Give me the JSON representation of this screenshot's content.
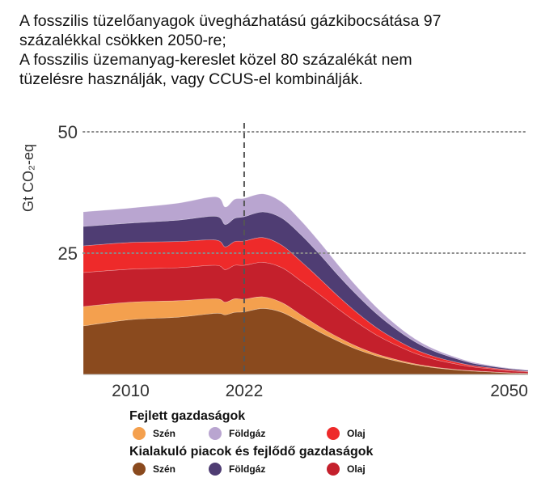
{
  "title_lines": [
    "A fosszilis tüzelőanyagok üvegházhatású gázkibocsátása 97",
    "százalékkal csökken 2050-re;",
    "A fosszilis üzemanyag-kereslet közel 80 százalékát nem",
    "tüzelésre használják, vagy CCUS-el kombinálják."
  ],
  "legend": {
    "group1_title": "Fejlett gazdaságok",
    "group2_title": "Kialakuló piacok és fejlődő gazdaságok",
    "group1": [
      {
        "label": "Szén",
        "color": "#f4a04e"
      },
      {
        "label": "Földgáz",
        "color": "#b9a5d0"
      },
      {
        "label": "Olaj",
        "color": "#ee2a2a"
      }
    ],
    "group2": [
      {
        "label": "Szén",
        "color": "#8a4a1e"
      },
      {
        "label": "Földgáz",
        "color": "#4f3d73"
      },
      {
        "label": "Olaj",
        "color": "#c4202c"
      }
    ]
  },
  "chart_data": {
    "type": "area",
    "stacked": true,
    "ylabel": "Gt CO₂-eq",
    "yticks": [
      25,
      50
    ],
    "ylim": [
      0,
      50
    ],
    "xlim": [
      2005,
      2052
    ],
    "xticks": [
      2010,
      2022,
      2050
    ],
    "reference_line_year": 2022,
    "grid": "dotted horizontal at 25 and 50",
    "x": [
      2005,
      2010,
      2015,
      2019,
      2020,
      2021,
      2022,
      2024,
      2026,
      2028,
      2030,
      2032,
      2034,
      2036,
      2038,
      2040,
      2042,
      2044,
      2046,
      2048,
      2050,
      2052
    ],
    "series": [
      {
        "name": "Szén (Kialakuló piacok és fejlődő gazdaságok)",
        "color": "#8a4a1e",
        "values": [
          10.0,
          11.3,
          11.8,
          12.6,
          12.3,
          12.8,
          12.9,
          13.6,
          12.8,
          10.8,
          8.7,
          6.8,
          5.1,
          3.8,
          2.8,
          2.0,
          1.4,
          1.0,
          0.7,
          0.5,
          0.3,
          0.2
        ]
      },
      {
        "name": "Szén (Fejlett gazdaságok)",
        "color": "#f4a04e",
        "values": [
          4.0,
          3.6,
          3.4,
          3.0,
          2.6,
          2.8,
          2.6,
          2.4,
          2.0,
          1.5,
          1.1,
          0.8,
          0.6,
          0.4,
          0.3,
          0.2,
          0.15,
          0.1,
          0.08,
          0.06,
          0.05,
          0.04
        ]
      },
      {
        "name": "Olaj (Kialakuló piacok és fejlődő gazdaságok)",
        "color": "#c4202c",
        "values": [
          7.0,
          6.8,
          6.8,
          6.9,
          6.7,
          6.9,
          7.0,
          7.1,
          7.2,
          7.0,
          6.6,
          5.8,
          4.9,
          3.9,
          3.0,
          2.2,
          1.6,
          1.2,
          0.8,
          0.6,
          0.4,
          0.3
        ]
      },
      {
        "name": "Olaj (Fejlett gazdaságok)",
        "color": "#ee2a2a",
        "values": [
          5.5,
          5.5,
          5.4,
          5.2,
          4.7,
          4.9,
          5.0,
          5.1,
          4.6,
          4.0,
          3.3,
          2.6,
          2.0,
          1.5,
          1.1,
          0.8,
          0.6,
          0.4,
          0.3,
          0.2,
          0.2,
          0.1
        ]
      },
      {
        "name": "Földgáz (Kialakuló piacok és fejlődő gazdaságok)",
        "color": "#4f3d73",
        "values": [
          4.0,
          4.0,
          4.4,
          4.9,
          4.6,
          4.8,
          5.0,
          5.3,
          5.6,
          5.5,
          5.0,
          4.3,
          3.6,
          2.9,
          2.2,
          1.6,
          1.1,
          0.8,
          0.5,
          0.35,
          0.25,
          0.2
        ]
      },
      {
        "name": "Földgáz (Fejlett gazdaságok)",
        "color": "#b9a5d0",
        "values": [
          3.0,
          3.1,
          3.5,
          4.0,
          3.6,
          3.9,
          3.8,
          3.7,
          3.3,
          2.9,
          2.5,
          2.1,
          1.7,
          1.3,
          0.9,
          0.6,
          0.45,
          0.3,
          0.22,
          0.15,
          0.1,
          0.08
        ]
      }
    ]
  }
}
